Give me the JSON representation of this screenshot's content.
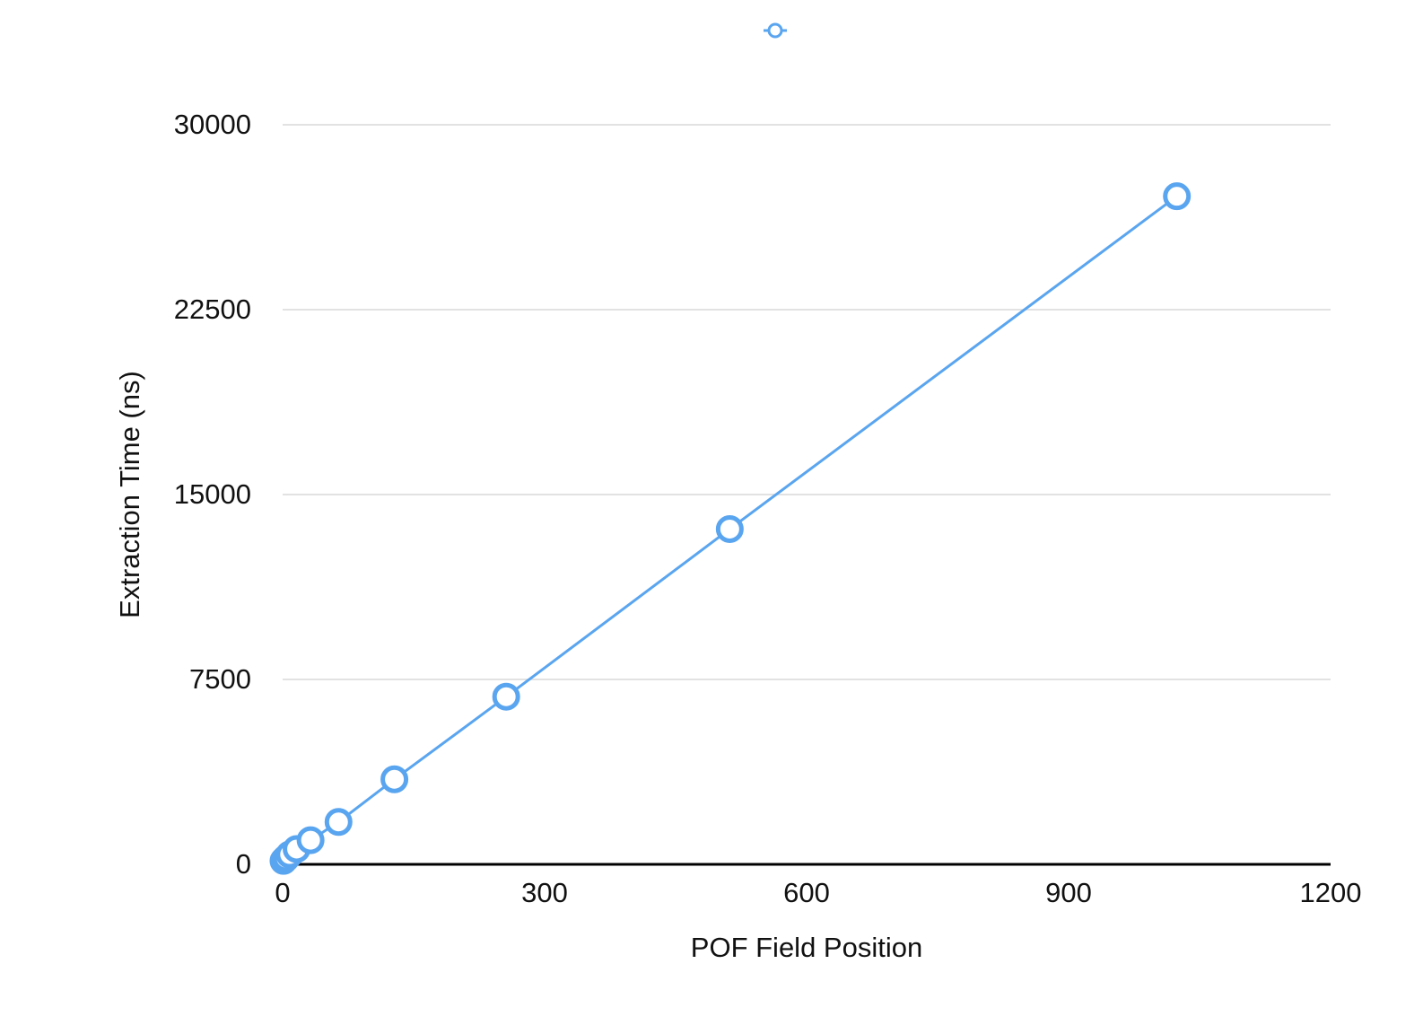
{
  "chart_data": {
    "type": "line",
    "x_label": "POF Field Position",
    "y_label": "Extraction Time (ns)",
    "x": [
      1,
      2,
      4,
      8,
      16,
      32,
      64,
      128,
      256,
      512,
      1024
    ],
    "series": [
      {
        "color": "#5aa5ef",
        "values": [
          140,
          180,
          250,
          400,
          620,
          980,
          1720,
          3450,
          6800,
          13600,
          27100
        ]
      }
    ],
    "xlim": [
      0,
      1200
    ],
    "xticks": [
      0,
      300,
      600,
      900,
      1200
    ],
    "ylim": [
      0,
      30000
    ],
    "yticks": [
      0,
      7500,
      15000,
      22500,
      30000
    ],
    "grid": true
  }
}
